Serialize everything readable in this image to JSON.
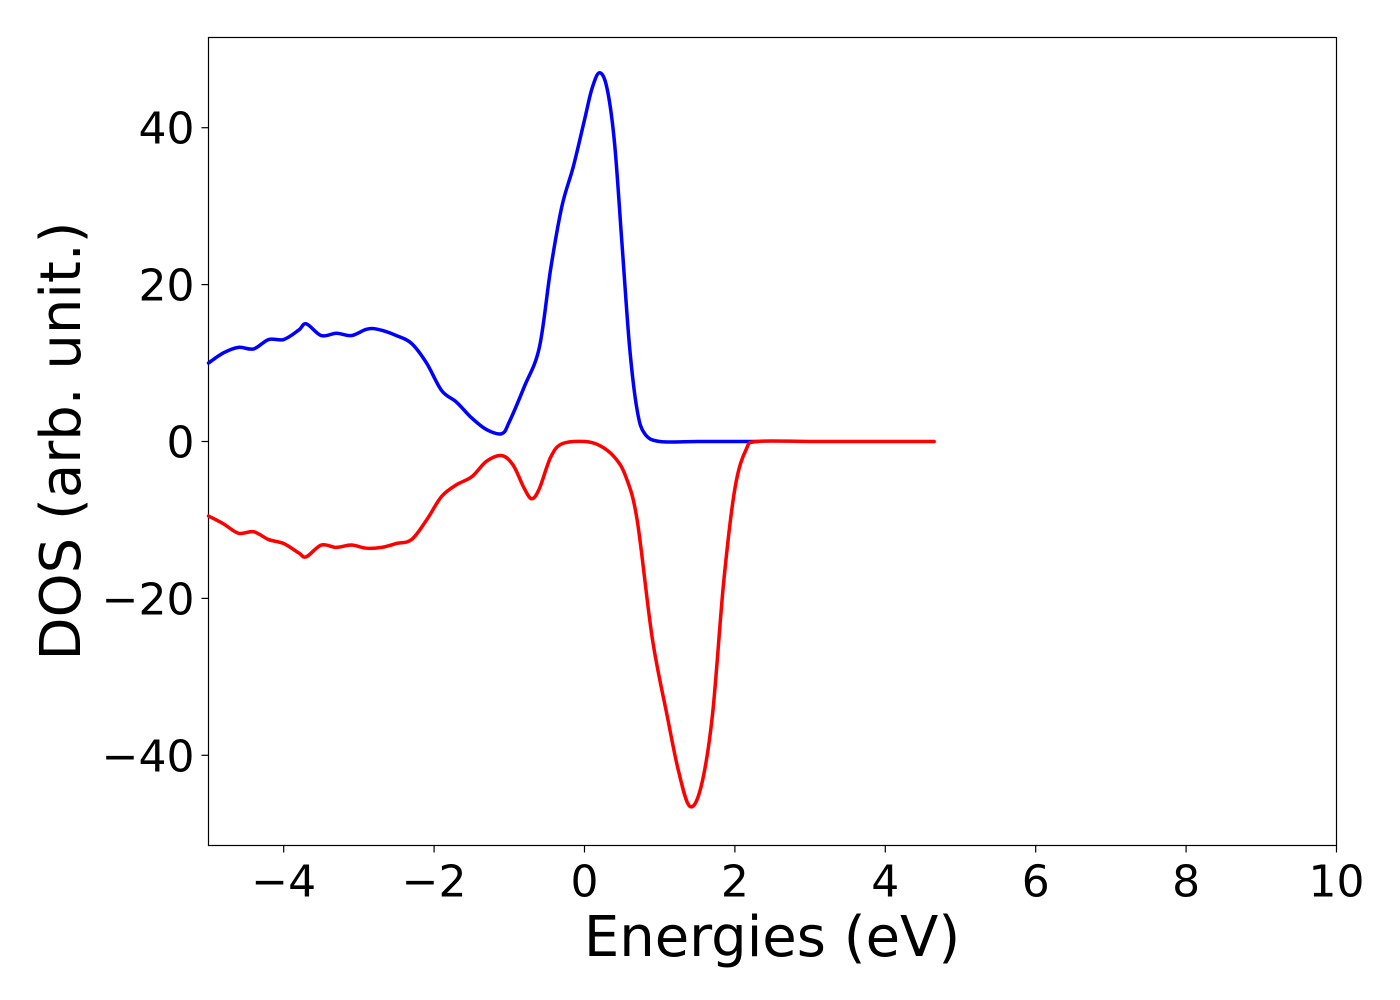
{
  "chart_data": {
    "type": "line",
    "title": "",
    "xlabel": "Energies (eV)",
    "ylabel": "DOS (arb. unit.)",
    "xlim": [
      -5,
      10
    ],
    "ylim": [
      -51.5,
      51.5
    ],
    "xticks": [
      -4,
      -2,
      0,
      2,
      4,
      6,
      8,
      10
    ],
    "xtick_labels": [
      "−4",
      "−2",
      "0",
      "2",
      "4",
      "6",
      "8",
      "10"
    ],
    "yticks": [
      -40,
      -20,
      0,
      20,
      40
    ],
    "ytick_labels": [
      "−40",
      "−20",
      "0",
      "20",
      "40"
    ],
    "grid": false,
    "legend": "none",
    "series": [
      {
        "color": "#0000ff",
        "points": [
          [
            -5.0,
            10.0
          ],
          [
            -4.8,
            11.3
          ],
          [
            -4.6,
            12.0
          ],
          [
            -4.4,
            11.8
          ],
          [
            -4.2,
            13.0
          ],
          [
            -4.0,
            13.0
          ],
          [
            -3.8,
            14.2
          ],
          [
            -3.7,
            15.0
          ],
          [
            -3.5,
            13.5
          ],
          [
            -3.3,
            13.8
          ],
          [
            -3.1,
            13.5
          ],
          [
            -2.9,
            14.3
          ],
          [
            -2.75,
            14.3
          ],
          [
            -2.5,
            13.5
          ],
          [
            -2.3,
            12.5
          ],
          [
            -2.1,
            10.0
          ],
          [
            -1.9,
            6.5
          ],
          [
            -1.7,
            5.0
          ],
          [
            -1.5,
            3.0
          ],
          [
            -1.3,
            1.5
          ],
          [
            -1.1,
            1.0
          ],
          [
            -1.0,
            2.5
          ],
          [
            -0.8,
            7.0
          ],
          [
            -0.6,
            12.0
          ],
          [
            -0.45,
            22.0
          ],
          [
            -0.3,
            30.0
          ],
          [
            -0.15,
            35.0
          ],
          [
            0.0,
            41.0
          ],
          [
            0.1,
            45.0
          ],
          [
            0.2,
            47.0
          ],
          [
            0.3,
            45.0
          ],
          [
            0.4,
            38.0
          ],
          [
            0.5,
            25.0
          ],
          [
            0.6,
            12.0
          ],
          [
            0.7,
            4.0
          ],
          [
            0.8,
            1.0
          ],
          [
            1.0,
            0.0
          ],
          [
            1.5,
            0.0
          ],
          [
            2.0,
            0.0
          ],
          [
            2.3,
            0.0
          ]
        ]
      },
      {
        "color": "#ff0000",
        "points": [
          [
            -5.0,
            -9.5
          ],
          [
            -4.8,
            -10.5
          ],
          [
            -4.6,
            -11.7
          ],
          [
            -4.4,
            -11.5
          ],
          [
            -4.2,
            -12.5
          ],
          [
            -4.0,
            -13.0
          ],
          [
            -3.8,
            -14.2
          ],
          [
            -3.7,
            -14.7
          ],
          [
            -3.5,
            -13.2
          ],
          [
            -3.3,
            -13.5
          ],
          [
            -3.1,
            -13.2
          ],
          [
            -2.9,
            -13.6
          ],
          [
            -2.7,
            -13.5
          ],
          [
            -2.5,
            -13.0
          ],
          [
            -2.3,
            -12.5
          ],
          [
            -2.1,
            -10.0
          ],
          [
            -1.9,
            -7.0
          ],
          [
            -1.7,
            -5.5
          ],
          [
            -1.5,
            -4.5
          ],
          [
            -1.3,
            -2.5
          ],
          [
            -1.1,
            -1.8
          ],
          [
            -0.95,
            -3.0
          ],
          [
            -0.8,
            -6.0
          ],
          [
            -0.7,
            -7.3
          ],
          [
            -0.6,
            -6.0
          ],
          [
            -0.45,
            -2.0
          ],
          [
            -0.3,
            -0.3
          ],
          [
            0.0,
            0.0
          ],
          [
            0.2,
            -0.5
          ],
          [
            0.4,
            -2.0
          ],
          [
            0.55,
            -4.5
          ],
          [
            0.7,
            -10.0
          ],
          [
            0.9,
            -25.0
          ],
          [
            1.1,
            -35.0
          ],
          [
            1.25,
            -42.0
          ],
          [
            1.4,
            -46.5
          ],
          [
            1.55,
            -44.0
          ],
          [
            1.7,
            -35.0
          ],
          [
            1.85,
            -18.0
          ],
          [
            2.0,
            -6.0
          ],
          [
            2.15,
            -1.0
          ],
          [
            2.3,
            0.0
          ],
          [
            3.0,
            0.0
          ],
          [
            4.0,
            0.0
          ],
          [
            4.65,
            0.0
          ]
        ]
      }
    ]
  }
}
